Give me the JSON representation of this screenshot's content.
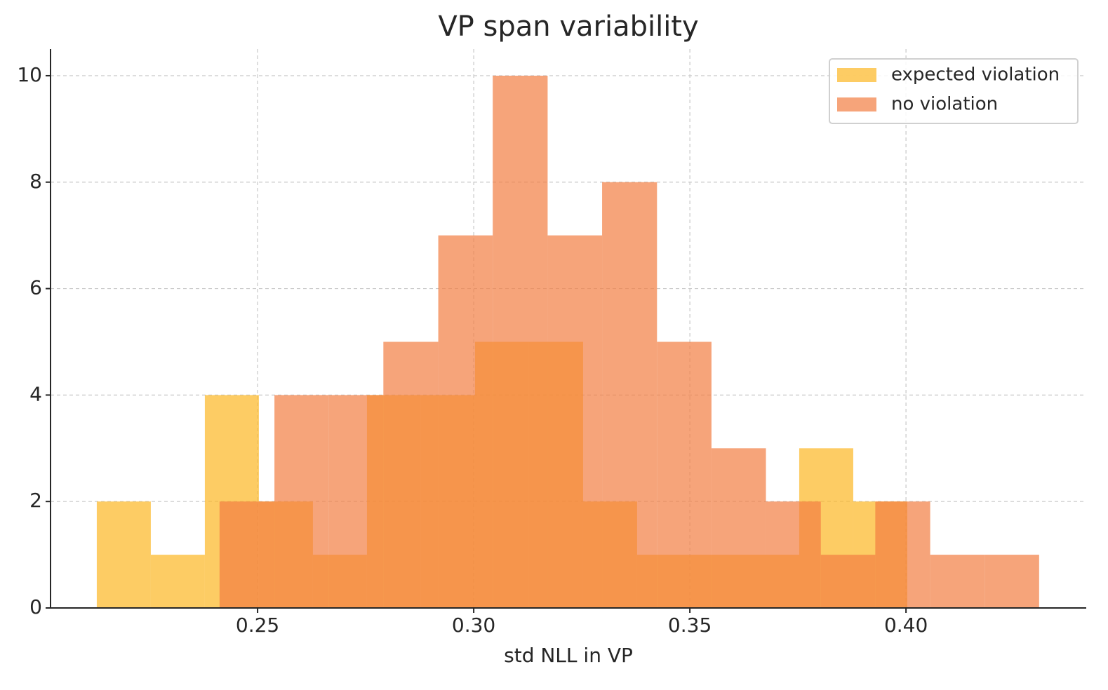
{
  "chart_data": {
    "type": "histogram",
    "title": "VP span variability",
    "x_label": "std NLL in VP",
    "series": [
      {
        "name": "expected violation",
        "color": "#fcb722",
        "bins": [
          0.2128,
          0.2253,
          0.2378,
          0.2503,
          0.2628,
          0.2753,
          0.2878,
          0.3003,
          0.3128,
          0.3253,
          0.3378,
          0.3503,
          0.3628,
          0.3753,
          0.3878,
          0.4003
        ],
        "values": [
          2,
          1,
          4,
          2,
          1,
          4,
          4,
          5,
          5,
          2,
          1,
          1,
          1,
          3,
          2
        ]
      },
      {
        "name": "no violation",
        "color": "#f27e41",
        "bins": [
          0.2412,
          0.2539,
          0.2665,
          0.2791,
          0.2918,
          0.3044,
          0.3171,
          0.3297,
          0.3424,
          0.355,
          0.3676,
          0.3803,
          0.3929,
          0.4056,
          0.4182,
          0.4308
        ],
        "values": [
          2,
          4,
          4,
          5,
          7,
          10,
          7,
          8,
          5,
          3,
          2,
          1,
          2,
          1,
          1
        ]
      }
    ],
    "opacity": 0.7,
    "xlim": [
      0.2021,
      0.4417
    ],
    "xticks": [
      0.25,
      {
        "value": 0.3,
        "label": "0.30"
      },
      0.35,
      {
        "value": 0.4,
        "label": "0.40"
      }
    ],
    "ylim": [
      0,
      10.5
    ],
    "yticks": [
      0,
      2,
      4,
      6,
      8,
      10
    ],
    "grid": true,
    "legend": "upper right"
  }
}
